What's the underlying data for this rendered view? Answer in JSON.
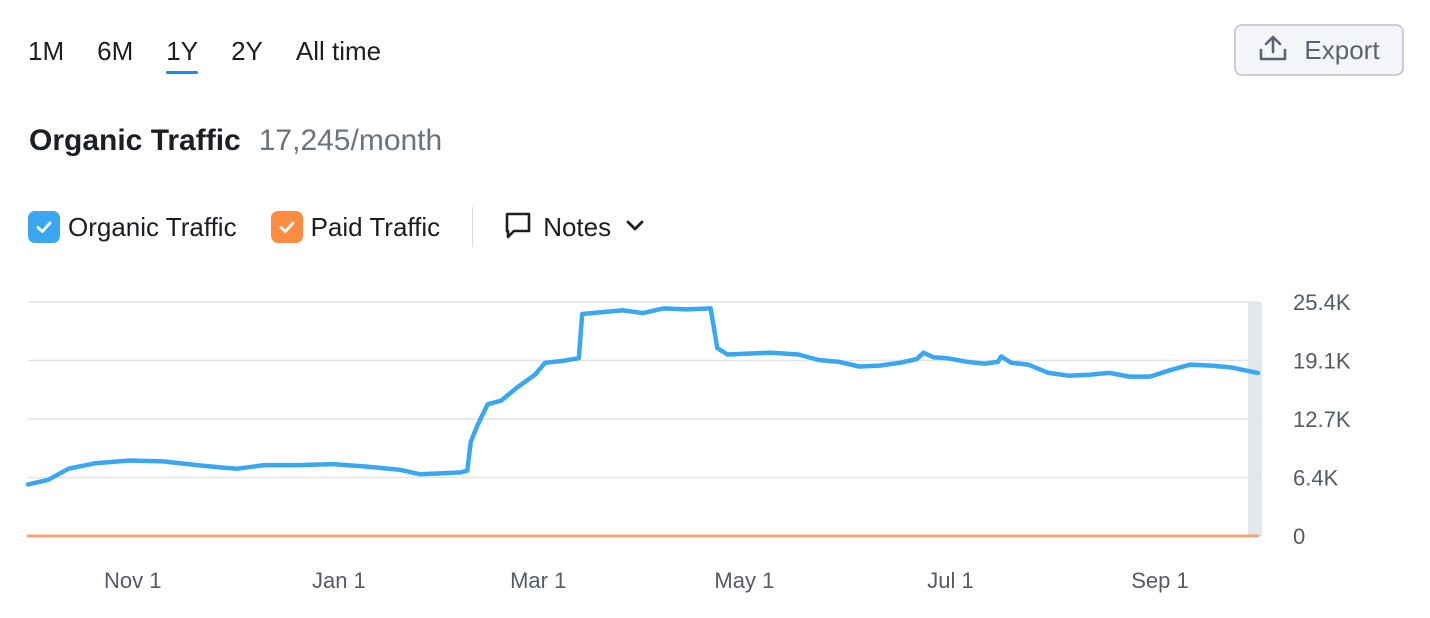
{
  "range_tabs": [
    {
      "label": "1M"
    },
    {
      "label": "6M"
    },
    {
      "label": "1Y",
      "active": true
    },
    {
      "label": "2Y"
    },
    {
      "label": "All time"
    }
  ],
  "export": {
    "label": "Export",
    "icon": "upload-icon"
  },
  "header": {
    "title": "Organic Traffic",
    "value": "17,245/month"
  },
  "legend": {
    "organic": {
      "label": "Organic Traffic",
      "color": "#3aa7f2",
      "checked": true
    },
    "paid": {
      "label": "Paid Traffic",
      "color": "#ff8c40",
      "checked": true
    },
    "notes": {
      "label": "Notes",
      "icon": "speech-bubble-icon",
      "chevron": "chevron-down-icon"
    }
  },
  "chart_data": {
    "type": "line",
    "xlabel": "",
    "ylabel": "",
    "x_tick_labels": [
      "Nov 1",
      "Jan 1",
      "Mar 1",
      "May 1",
      "Jul 1",
      "Sep 1"
    ],
    "x_tick_days": [
      31,
      92,
      151,
      212,
      273,
      335
    ],
    "x_range_days": [
      0,
      364
    ],
    "y_tick_labels": [
      "0",
      "6.4K",
      "12.7K",
      "19.1K",
      "25.4K"
    ],
    "ylim": [
      0,
      25400
    ],
    "grid": true,
    "legend_position": "top-left",
    "series": [
      {
        "name": "Organic Traffic",
        "color": "#3aa7f2",
        "points": [
          [
            0,
            5600
          ],
          [
            6,
            6100
          ],
          [
            12,
            7300
          ],
          [
            20,
            7900
          ],
          [
            30,
            8200
          ],
          [
            40,
            8100
          ],
          [
            50,
            7700
          ],
          [
            58,
            7400
          ],
          [
            62,
            7300
          ],
          [
            70,
            7700
          ],
          [
            80,
            7700
          ],
          [
            90,
            7800
          ],
          [
            98,
            7600
          ],
          [
            104,
            7400
          ],
          [
            110,
            7200
          ],
          [
            116,
            6700
          ],
          [
            122,
            6800
          ],
          [
            128,
            6900
          ],
          [
            130,
            7100
          ],
          [
            131,
            10200
          ],
          [
            133,
            12000
          ],
          [
            136,
            14300
          ],
          [
            140,
            14700
          ],
          [
            145,
            16200
          ],
          [
            150,
            17500
          ],
          [
            153,
            18800
          ],
          [
            158,
            19000
          ],
          [
            163,
            19300
          ],
          [
            164,
            24100
          ],
          [
            170,
            24300
          ],
          [
            176,
            24500
          ],
          [
            182,
            24200
          ],
          [
            188,
            24700
          ],
          [
            195,
            24600
          ],
          [
            202,
            24700
          ],
          [
            204,
            20400
          ],
          [
            207,
            19700
          ],
          [
            213,
            19800
          ],
          [
            220,
            19900
          ],
          [
            228,
            19700
          ],
          [
            234,
            19100
          ],
          [
            240,
            18900
          ],
          [
            246,
            18400
          ],
          [
            252,
            18500
          ],
          [
            258,
            18800
          ],
          [
            263,
            19200
          ],
          [
            265,
            19900
          ],
          [
            268,
            19400
          ],
          [
            272,
            19300
          ],
          [
            278,
            18900
          ],
          [
            283,
            18700
          ],
          [
            287,
            18900
          ],
          [
            288,
            19500
          ],
          [
            291,
            18800
          ],
          [
            296,
            18600
          ],
          [
            302,
            17700
          ],
          [
            308,
            17400
          ],
          [
            314,
            17500
          ],
          [
            320,
            17700
          ],
          [
            326,
            17300
          ],
          [
            332,
            17300
          ],
          [
            338,
            18000
          ],
          [
            344,
            18600
          ],
          [
            350,
            18500
          ],
          [
            356,
            18300
          ],
          [
            364,
            17700
          ]
        ]
      },
      {
        "name": "Paid Traffic",
        "color": "#ff8c40",
        "points": [
          [
            0,
            0
          ],
          [
            364,
            0
          ]
        ]
      }
    ]
  }
}
